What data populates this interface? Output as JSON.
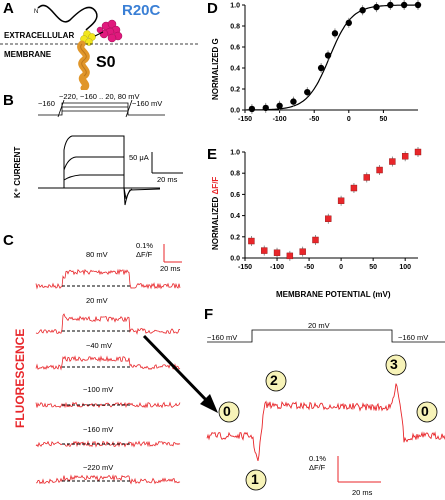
{
  "panels": {
    "A": {
      "letter": "A",
      "n_label": "N",
      "mutation": "R20C",
      "extracellular": "EXTRACELLULAR",
      "membrane": "MEMBRANE",
      "segment": "S0"
    },
    "B": {
      "letter": "B",
      "hold1": "−160",
      "steps": "−220, −160 .. 20, 80 mV",
      "hold2": "−160 mV",
      "ylabel": "K⁺ CURRENT",
      "scale_current": "50 μA",
      "scale_time": "20 ms"
    },
    "C": {
      "letter": "C",
      "ylabel": "FLUORESCENCE",
      "scale_df": "0.1%",
      "scale_df_unit": "ΔF/F",
      "scale_time": "20 ms",
      "traces": [
        "80 mV",
        "20 mV",
        "−40 mV",
        "−100 mV",
        "−160 mV",
        "−220 mV"
      ]
    },
    "D": {
      "letter": "D"
    },
    "E": {
      "letter": "E"
    },
    "F": {
      "letter": "F",
      "hold1": "−160 mV",
      "step": "20 mV",
      "hold2": "−160 mV",
      "marker_0a": "0",
      "marker_1": "1",
      "marker_2": "2",
      "marker_3": "3",
      "marker_0b": "0",
      "scale_df": "0.1%",
      "scale_df_unit": "ΔF/F",
      "scale_time": "20 ms"
    }
  },
  "chart_data": [
    {
      "type": "scatter",
      "ylabel": "NORMALIZED G",
      "xlabel": "",
      "xlim": [
        -150,
        100
      ],
      "ylim": [
        0,
        1.0
      ],
      "xticks": [
        "-150",
        "-100",
        "-50",
        "0",
        "50"
      ],
      "yticks": [
        "0.0",
        "0.2",
        "0.4",
        "0.6",
        "0.8",
        "1.0"
      ],
      "x": [
        -140,
        -120,
        -100,
        -80,
        -60,
        -40,
        -30,
        -20,
        0,
        20,
        40,
        60,
        80,
        100
      ],
      "y": [
        0.01,
        0.02,
        0.04,
        0.08,
        0.17,
        0.4,
        0.52,
        0.73,
        0.83,
        0.95,
        0.98,
        1.0,
        1.0,
        1.0
      ],
      "fit": "sigmoid"
    },
    {
      "type": "scatter",
      "ylabel": "NORMALIZED ΔF/F",
      "xlabel": "MEMBRANE POTENTIAL (mV)",
      "xlim": [
        -150,
        120
      ],
      "ylim": [
        0,
        1.0
      ],
      "xticks": [
        "-150",
        "-100",
        "-50",
        "0",
        "50",
        "100"
      ],
      "yticks": [
        "0.0",
        "0.2",
        "0.4",
        "0.6",
        "0.8",
        "1.0"
      ],
      "x": [
        -140,
        -120,
        -100,
        -80,
        -60,
        -40,
        -20,
        0,
        20,
        40,
        60,
        80,
        100,
        120
      ],
      "y": [
        0.16,
        0.07,
        0.05,
        0.02,
        0.06,
        0.17,
        0.37,
        0.54,
        0.66,
        0.76,
        0.83,
        0.91,
        0.96,
        1.0
      ]
    }
  ]
}
